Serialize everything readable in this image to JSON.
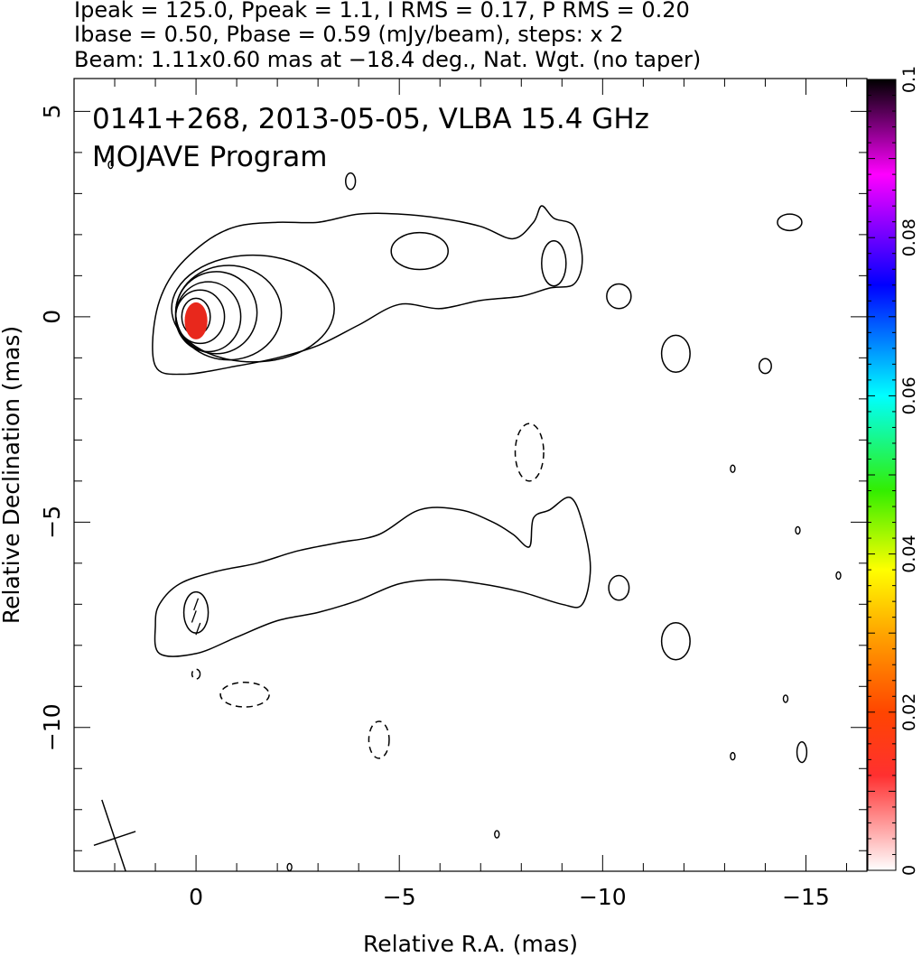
{
  "header": {
    "line1": "Ipeak = 125.0, Ppeak = 1.1, I RMS = 0.17, P RMS = 0.20",
    "line2": "Ibase = 0.50, Pbase = 0.59 (mJy/beam), steps: x 2",
    "line3": "Beam: 1.11x0.60 mas at −18.4 deg., Nat. Wgt. (no taper)"
  },
  "chart_data": {
    "type": "contour",
    "title": "0141+268, 2013-05-05, VLBA 15.4 GHz",
    "subtitle": "MOJAVE Program",
    "xlabel": "Relative R.A. (mas)",
    "ylabel": "Relative Declination (mas)",
    "xlim": [
      3,
      -16.5
    ],
    "ylim": [
      -13.5,
      5.8
    ],
    "x_reversed": true,
    "x_ticks": [
      0,
      -5,
      -10,
      -15
    ],
    "x_tick_labels": [
      "0",
      "−5",
      "−10",
      "−15"
    ],
    "y_ticks": [
      5,
      0,
      -5,
      -10
    ],
    "y_tick_labels": [
      "5",
      "0",
      "−5",
      "−10"
    ],
    "colorbar": {
      "ticks": [
        0,
        0.02,
        0.04,
        0.06,
        0.08,
        0.1
      ],
      "tick_labels": [
        "0",
        "0.02",
        "0.04",
        "0.06",
        "0.08",
        "0.1"
      ],
      "range": [
        0,
        0.1
      ],
      "colormap": "rainbow (white-red-orange-yellow-green-cyan-blue-magenta-black)"
    },
    "beam": {
      "major_mas": 1.11,
      "minor_mas": 0.6,
      "pa_deg": -18.4,
      "x": 2.0,
      "y": -12.7
    },
    "total_intensity_panel": {
      "contour_levels_mJy": [
        0.5,
        1,
        2,
        4,
        8,
        16,
        32,
        64
      ],
      "peak": {
        "x": 0.0,
        "y": 0.0,
        "value_mJy": 125.0
      },
      "polarized_emission": {
        "x": 0.0,
        "y": -0.1,
        "color": "#e8281c"
      },
      "main_jet_contour": [
        [
          -0.2,
          1.8
        ],
        [
          -1.0,
          2.2
        ],
        [
          -2.0,
          2.3
        ],
        [
          -3.0,
          2.3
        ],
        [
          -4.0,
          2.5
        ],
        [
          -5.0,
          2.5
        ],
        [
          -6.0,
          2.4
        ],
        [
          -7.0,
          2.2
        ],
        [
          -7.8,
          1.9
        ],
        [
          -8.3,
          2.3
        ],
        [
          -8.5,
          2.7
        ],
        [
          -8.8,
          2.4
        ],
        [
          -9.3,
          2.2
        ],
        [
          -9.5,
          1.4
        ],
        [
          -9.3,
          0.8
        ],
        [
          -8.7,
          0.7
        ],
        [
          -8.0,
          0.5
        ],
        [
          -7.0,
          0.4
        ],
        [
          -6.0,
          0.2
        ],
        [
          -5.0,
          0.3
        ],
        [
          -4.0,
          -0.2
        ],
        [
          -3.0,
          -0.7
        ],
        [
          -2.0,
          -1.0
        ],
        [
          -1.0,
          -1.2
        ],
        [
          0.3,
          -1.4
        ],
        [
          1.0,
          -1.2
        ],
        [
          1.0,
          0.0
        ],
        [
          0.6,
          1.0
        ]
      ],
      "core_contours": [
        {
          "cx": 0.0,
          "cy": 0.0,
          "rx": 0.35,
          "ry": 0.45
        },
        {
          "cx": -0.1,
          "cy": 0.0,
          "rx": 0.6,
          "ry": 0.65
        },
        {
          "cx": -0.3,
          "cy": 0.0,
          "rx": 0.8,
          "ry": 0.85
        },
        {
          "cx": -0.5,
          "cy": 0.1,
          "rx": 1.0,
          "ry": 1.0
        },
        {
          "cx": -0.8,
          "cy": 0.1,
          "rx": 1.3,
          "ry": 1.15
        },
        {
          "cx": -1.4,
          "cy": 0.2,
          "rx": 2.0,
          "ry": 1.3
        }
      ],
      "outer_components": [
        {
          "cx": -5.5,
          "cy": 1.6,
          "rx": 0.7,
          "ry": 0.45
        },
        {
          "cx": -8.8,
          "cy": 1.3,
          "rx": 0.3,
          "ry": 0.55
        },
        {
          "cx": -10.4,
          "cy": 0.5,
          "rx": 0.3,
          "ry": 0.3
        },
        {
          "cx": -11.8,
          "cy": -0.9,
          "rx": 0.35,
          "ry": 0.45
        },
        {
          "cx": -14.6,
          "cy": 2.3,
          "rx": 0.3,
          "ry": 0.2
        },
        {
          "cx": -14.0,
          "cy": -1.2,
          "rx": 0.15,
          "ry": 0.18
        },
        {
          "cx": -3.8,
          "cy": 3.3,
          "rx": 0.12,
          "ry": 0.2
        }
      ],
      "negative_contours": [
        {
          "cx": -8.2,
          "cy": -3.3,
          "rx": 0.35,
          "ry": 0.7
        }
      ]
    },
    "polarization_panel": {
      "outer_contour": [
        [
          0.9,
          -7.0
        ],
        [
          0.4,
          -6.5
        ],
        [
          -0.5,
          -6.2
        ],
        [
          -1.5,
          -6.0
        ],
        [
          -2.5,
          -5.7
        ],
        [
          -3.5,
          -5.5
        ],
        [
          -4.5,
          -5.3
        ],
        [
          -5.5,
          -4.7
        ],
        [
          -6.5,
          -4.7
        ],
        [
          -7.3,
          -5.0
        ],
        [
          -7.8,
          -5.3
        ],
        [
          -8.2,
          -5.6
        ],
        [
          -8.3,
          -4.9
        ],
        [
          -8.7,
          -4.7
        ],
        [
          -9.2,
          -4.4
        ],
        [
          -9.5,
          -5.0
        ],
        [
          -9.7,
          -6.1
        ],
        [
          -9.5,
          -7.0
        ],
        [
          -9.0,
          -7.0
        ],
        [
          -8.0,
          -6.7
        ],
        [
          -7.0,
          -6.5
        ],
        [
          -6.0,
          -6.4
        ],
        [
          -5.0,
          -6.5
        ],
        [
          -4.0,
          -6.9
        ],
        [
          -3.0,
          -7.2
        ],
        [
          -2.0,
          -7.4
        ],
        [
          -1.0,
          -7.8
        ],
        [
          0.0,
          -8.2
        ],
        [
          0.9,
          -8.2
        ],
        [
          1.0,
          -7.5
        ]
      ],
      "components": [
        {
          "cx": 0.0,
          "cy": -7.2,
          "rx": 0.3,
          "ry": 0.5
        },
        {
          "cx": -10.4,
          "cy": -6.6,
          "rx": 0.25,
          "ry": 0.3
        },
        {
          "cx": -11.8,
          "cy": -7.9,
          "rx": 0.35,
          "ry": 0.45
        },
        {
          "cx": -14.9,
          "cy": -10.6,
          "rx": 0.12,
          "ry": 0.25
        }
      ],
      "negative_components": [
        {
          "cx": -1.2,
          "cy": -9.2,
          "rx": 0.6,
          "ry": 0.3
        },
        {
          "cx": -4.5,
          "cy": -10.3,
          "rx": 0.25,
          "ry": 0.45
        },
        {
          "cx": 0.0,
          "cy": -8.7,
          "rx": 0.1,
          "ry": 0.12
        }
      ],
      "evpa_sticks": [
        {
          "x": 0.0,
          "y": -7.0,
          "angle_deg": 70
        },
        {
          "x": 0.05,
          "y": -7.3,
          "angle_deg": 70
        },
        {
          "x": -0.05,
          "y": -7.6,
          "angle_deg": 70
        }
      ]
    },
    "minor_features": [
      {
        "x": -13.2,
        "y": -3.7
      },
      {
        "x": -14.8,
        "y": -5.2
      },
      {
        "x": -15.8,
        "y": -6.3
      },
      {
        "x": -14.5,
        "y": -9.3
      },
      {
        "x": -13.2,
        "y": -10.7
      },
      {
        "x": -7.4,
        "y": -12.6
      },
      {
        "x": -2.3,
        "y": -13.4
      },
      {
        "x": 2.1,
        "y": 3.7
      }
    ]
  }
}
